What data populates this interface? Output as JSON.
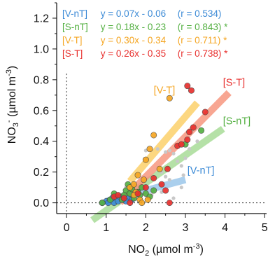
{
  "chart_data": {
    "type": "scatter",
    "xlabel": "NO2 (µmol m-3)",
    "ylabel": "NO3- (µmol m-3)",
    "xlim": [
      -0.25,
      5.05
    ],
    "ylim": [
      -0.07,
      1.3
    ],
    "xticks": [
      "0",
      "1",
      "2",
      "3",
      "4",
      "5"
    ],
    "yticks": [
      "0.0",
      "0.2",
      "0.4",
      "0.6",
      "0.8",
      "1.0",
      "1.2"
    ],
    "legend_position": "top-left",
    "series": [
      {
        "name": "[V-nT]",
        "color": "#3b8ad6",
        "line_color": "#9cc7ea",
        "fit": {
          "slope": 0.07,
          "intercept": -0.06,
          "x_range": [
            1.0,
            3.0
          ]
        },
        "equation": "y = 0.07x - 0.06",
        "r_text": "(r = 0.534)",
        "sig": "",
        "label_pos": [
          3.05,
          0.19
        ],
        "points": [
          [
            1.0,
            0.01
          ],
          [
            1.1,
            0.02
          ],
          [
            1.2,
            0.0
          ],
          [
            1.3,
            0.01
          ],
          [
            1.4,
            0.02
          ],
          [
            1.55,
            0.03
          ],
          [
            1.65,
            0.02
          ],
          [
            1.15,
            0.03
          ],
          [
            0.9,
            0.0
          ],
          [
            1.05,
            0.0
          ],
          [
            1.35,
            0.04
          ],
          [
            1.5,
            0.01
          ]
        ]
      },
      {
        "name": "[S-nT]",
        "color": "#55b043",
        "line_color": "#a9dc98",
        "fit": {
          "slope": 0.18,
          "intercept": -0.23,
          "x_range": [
            0.65,
            3.95
          ]
        },
        "equation": "y = 0.18x - 0.23",
        "r_text": "(r = 0.843)",
        "sig": "*",
        "label_pos": [
          3.95,
          0.51
        ],
        "points": [
          [
            0.9,
            0.0
          ],
          [
            1.1,
            0.02
          ],
          [
            1.2,
            0.06
          ],
          [
            1.4,
            0.02
          ],
          [
            1.5,
            0.08
          ],
          [
            1.55,
            0.12
          ],
          [
            1.6,
            0.06
          ],
          [
            1.65,
            0.09
          ],
          [
            1.7,
            0.03
          ],
          [
            1.8,
            0.07
          ],
          [
            1.85,
            0.05
          ],
          [
            1.9,
            0.1
          ],
          [
            2.0,
            0.06
          ],
          [
            2.1,
            0.04
          ],
          [
            2.2,
            0.08
          ],
          [
            1.45,
            0.05
          ],
          [
            3.0,
            0.38
          ],
          [
            3.4,
            0.47
          ]
        ]
      },
      {
        "name": "[V-T]",
        "color": "#f5a623",
        "line_color": "#fcd16b",
        "fit": {
          "slope": 0.3,
          "intercept": -0.34,
          "x_range": [
            1.6,
            3.3
          ]
        },
        "equation": "y = 0.30x - 0.34",
        "r_text": "(r = 0.711)",
        "sig": "*",
        "label_pos": [
          2.2,
          0.71
        ],
        "points": [
          [
            1.6,
            0.1
          ],
          [
            1.7,
            0.12
          ],
          [
            1.8,
            0.18
          ],
          [
            1.85,
            0.02
          ],
          [
            1.9,
            0.0
          ],
          [
            1.95,
            0.15
          ],
          [
            2.0,
            0.28
          ],
          [
            2.1,
            0.35
          ],
          [
            2.2,
            0.44
          ],
          [
            1.75,
            0.07
          ],
          [
            2.05,
            0.02
          ],
          [
            2.35,
            0.22
          ],
          [
            2.6,
            0.68
          ],
          [
            1.7,
            0.05
          ]
        ]
      },
      {
        "name": "[S-T]",
        "color": "#e8302e",
        "line_color": "#f7977f",
        "fit": {
          "slope": 0.26,
          "intercept": -0.35,
          "x_range": [
            1.35,
            4.1
          ]
        },
        "equation": "y = 0.26x - 0.35",
        "r_text": "(r = 0.738)",
        "sig": "*",
        "label_pos": [
          3.95,
          0.76
        ],
        "points": [
          [
            1.2,
            0.04
          ],
          [
            1.3,
            0.05
          ],
          [
            1.45,
            0.03
          ],
          [
            1.6,
            0.0
          ],
          [
            1.8,
            0.06
          ],
          [
            2.0,
            0.1
          ],
          [
            2.2,
            0.16
          ],
          [
            2.4,
            0.12
          ],
          [
            2.5,
            0.08
          ],
          [
            2.6,
            0.0
          ],
          [
            2.8,
            0.37
          ],
          [
            2.9,
            0.38
          ],
          [
            3.05,
            0.41
          ],
          [
            3.1,
            0.46
          ],
          [
            3.2,
            0.49
          ],
          [
            3.5,
            0.59
          ],
          [
            3.15,
            0.73
          ],
          [
            3.05,
            0.76
          ],
          [
            2.55,
            0.22
          ]
        ]
      }
    ],
    "unlabeled_points": {
      "color": "#c8c8c8",
      "points": [
        [
          2.0,
          0.34
        ],
        [
          2.3,
          0.35
        ],
        [
          2.5,
          0.33
        ],
        [
          2.6,
          0.34
        ],
        [
          2.7,
          0.32
        ],
        [
          2.8,
          0.27
        ],
        [
          2.9,
          0.24
        ],
        [
          3.0,
          0.29
        ],
        [
          3.3,
          0.4
        ],
        [
          2.4,
          0.2
        ],
        [
          2.5,
          0.17
        ],
        [
          2.6,
          0.15
        ],
        [
          2.9,
          0.1
        ],
        [
          3.1,
          0.35
        ],
        [
          2.15,
          0.05
        ],
        [
          2.4,
          0.07
        ],
        [
          2.7,
          0.03
        ],
        [
          2.95,
          0.18
        ],
        [
          1.5,
          0.1
        ]
      ]
    }
  }
}
